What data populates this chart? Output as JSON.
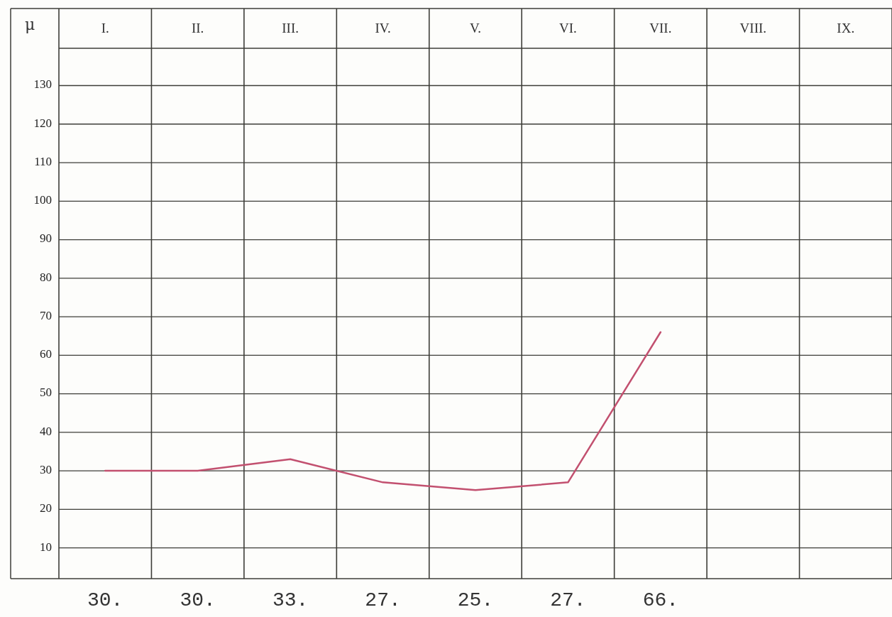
{
  "chart_data": {
    "type": "line",
    "ylabel": "μ",
    "categories": [
      "I.",
      "II.",
      "III.",
      "IV.",
      "V.",
      "VI.",
      "VII.",
      "VIII.",
      "IX."
    ],
    "series": [
      {
        "color": "#c2506f",
        "values": [
          30,
          30,
          33,
          27,
          25,
          27,
          66,
          null,
          null
        ],
        "value_labels": [
          "30.",
          "30.",
          "33.",
          "27.",
          "25.",
          "27.",
          "66.",
          null,
          null
        ]
      }
    ],
    "ylim": [
      2,
      150
    ],
    "yticks": [
      10,
      20,
      30,
      40,
      50,
      60,
      70,
      80,
      90,
      100,
      110,
      120,
      130
    ],
    "grid": true,
    "marker": "none",
    "line_style": "solid"
  }
}
